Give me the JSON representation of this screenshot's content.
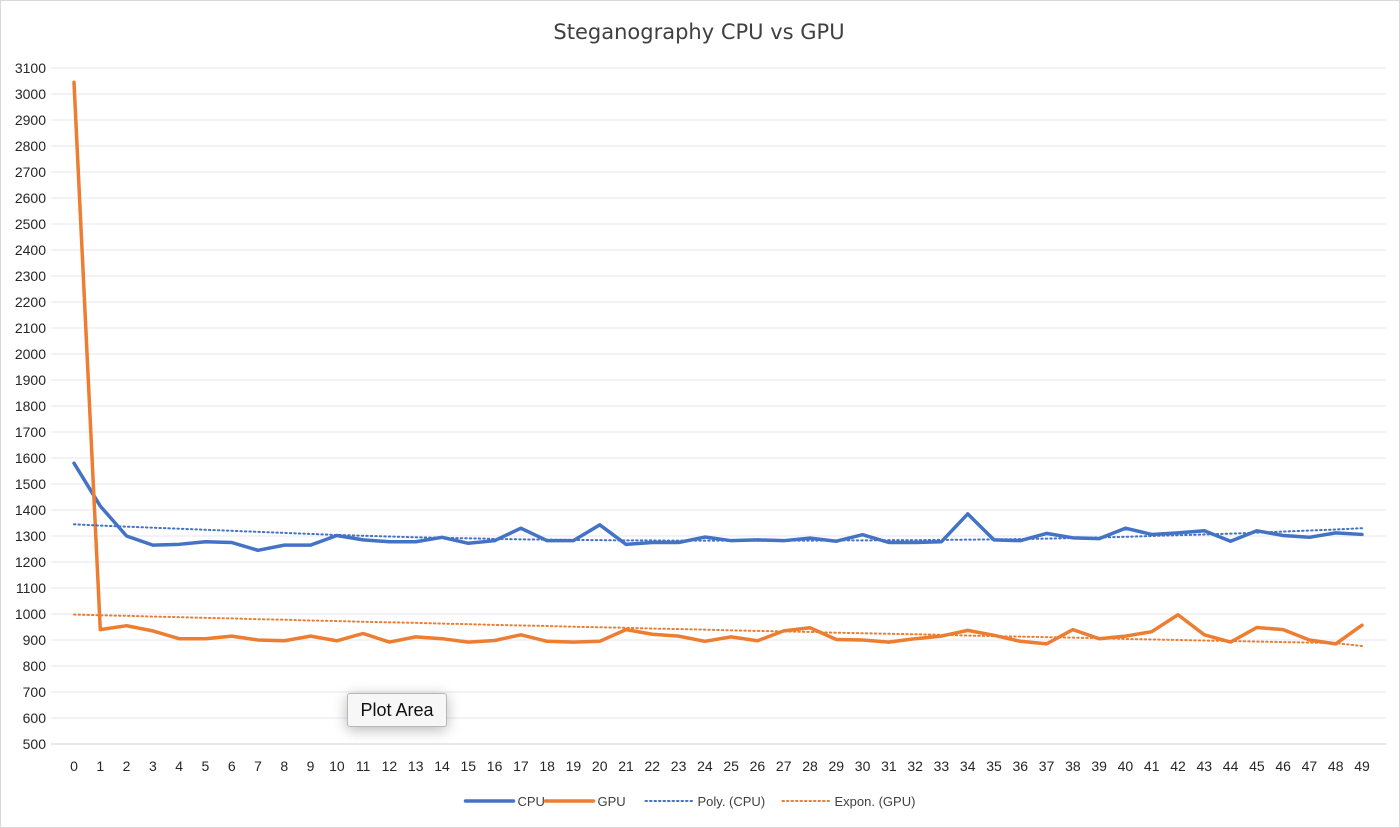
{
  "chart_data": {
    "type": "line",
    "title": "Steganography CPU vs GPU",
    "xlabel": "",
    "ylabel": "",
    "x": [
      0,
      1,
      2,
      3,
      4,
      5,
      6,
      7,
      8,
      9,
      10,
      11,
      12,
      13,
      14,
      15,
      16,
      17,
      18,
      19,
      20,
      21,
      22,
      23,
      24,
      25,
      26,
      27,
      28,
      29,
      30,
      31,
      32,
      33,
      34,
      35,
      36,
      37,
      38,
      39,
      40,
      41,
      42,
      43,
      44,
      45,
      46,
      47,
      48,
      49
    ],
    "xlim": [
      0,
      49
    ],
    "ylim": [
      500,
      3100
    ],
    "y_tick_step": 100,
    "grid": true,
    "legend_position": "bottom",
    "series": [
      {
        "name": "CPU",
        "style": "solid",
        "color": "#4472C4",
        "values": [
          1580,
          1415,
          1300,
          1265,
          1268,
          1278,
          1275,
          1245,
          1265,
          1265,
          1302,
          1285,
          1278,
          1278,
          1295,
          1272,
          1282,
          1330,
          1282,
          1282,
          1343,
          1268,
          1275,
          1275,
          1296,
          1282,
          1285,
          1282,
          1292,
          1280,
          1305,
          1275,
          1275,
          1278,
          1385,
          1285,
          1282,
          1310,
          1293,
          1290,
          1330,
          1306,
          1312,
          1320,
          1280,
          1320,
          1302,
          1295,
          1312,
          1306
        ]
      },
      {
        "name": "GPU",
        "style": "solid",
        "color": "#ED7D31",
        "values": [
          3045,
          940,
          955,
          935,
          905,
          905,
          915,
          900,
          897,
          915,
          897,
          925,
          892,
          912,
          905,
          892,
          898,
          920,
          895,
          892,
          895,
          940,
          922,
          915,
          895,
          912,
          897,
          935,
          947,
          902,
          900,
          892,
          905,
          915,
          937,
          918,
          895,
          885,
          940,
          905,
          915,
          932,
          997,
          920,
          892,
          948,
          940,
          900,
          885,
          957
        ]
      },
      {
        "name": "Poly. (CPU)",
        "style": "dotted",
        "color": "#4472C4",
        "values": [
          1345,
          1340,
          1336,
          1332,
          1328,
          1324,
          1320,
          1316,
          1312,
          1308,
          1304,
          1301,
          1298,
          1295,
          1293,
          1291,
          1289,
          1287,
          1286,
          1285,
          1284,
          1283,
          1283,
          1282,
          1282,
          1282,
          1282,
          1282,
          1282,
          1283,
          1283,
          1284,
          1284,
          1285,
          1286,
          1287,
          1288,
          1290,
          1292,
          1294,
          1297,
          1300,
          1303,
          1306,
          1309,
          1313,
          1317,
          1321,
          1325,
          1330
        ]
      },
      {
        "name": "Expon. (GPU)",
        "style": "dotted",
        "color": "#ED7D31",
        "values": [
          998,
          995,
          993,
          990,
          988,
          985,
          983,
          980,
          978,
          975,
          973,
          970,
          968,
          966,
          963,
          961,
          958,
          956,
          954,
          951,
          949,
          947,
          944,
          942,
          940,
          937,
          935,
          933,
          931,
          928,
          926,
          924,
          922,
          920,
          917,
          915,
          913,
          911,
          909,
          907,
          904,
          902,
          900,
          898,
          896,
          894,
          892,
          890,
          888,
          877
        ]
      }
    ]
  },
  "tooltip": {
    "text": "Plot Area"
  }
}
